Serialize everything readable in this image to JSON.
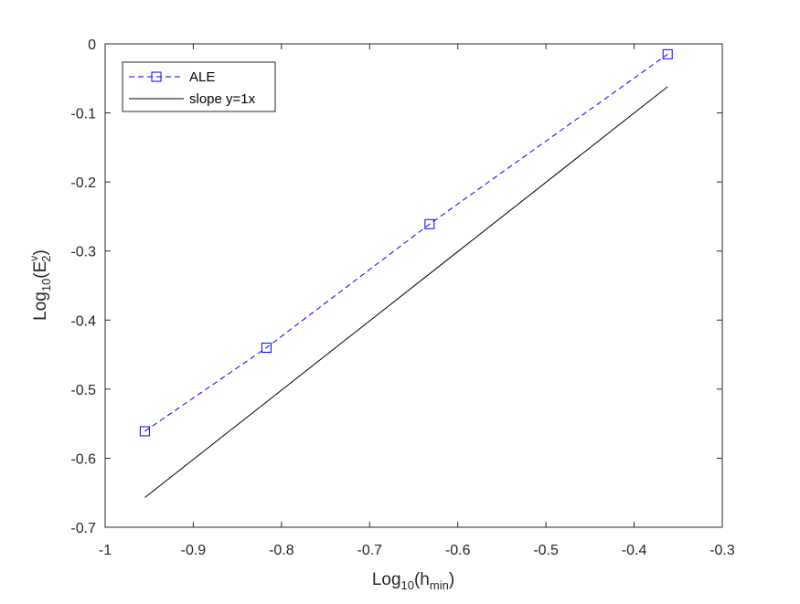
{
  "chart_data": {
    "type": "line",
    "title": "",
    "xlabel": {
      "base": "Log",
      "sub1": "10",
      "paren_open": "(h",
      "sub2": "min",
      "paren_close": ")"
    },
    "ylabel": {
      "base": "Log",
      "sub1": "10",
      "paren_open": "(E",
      "sup": "v",
      "sub2": "2",
      "paren_close": ")"
    },
    "xlim": [
      -1,
      -0.3
    ],
    "ylim": [
      -0.7,
      0
    ],
    "xticks": [
      -1,
      -0.9,
      -0.8,
      -0.7,
      -0.6,
      -0.5,
      -0.4,
      -0.3
    ],
    "xtick_labels": [
      "-1",
      "-0.9",
      "-0.8",
      "-0.7",
      "-0.6",
      "-0.5",
      "-0.4",
      "-0.3"
    ],
    "yticks": [
      -0.7,
      -0.6,
      -0.5,
      -0.4,
      -0.3,
      -0.2,
      -0.1,
      0
    ],
    "ytick_labels": [
      "-0.7",
      "-0.6",
      "-0.5",
      "-0.4",
      "-0.3",
      "-0.2",
      "-0.1",
      "0"
    ],
    "grid": false,
    "legend_position": "top-left",
    "series": [
      {
        "name": "ALE",
        "color": "#0000ff",
        "line_style": "dashed",
        "marker": "square",
        "x": [
          -0.955,
          -0.817,
          -0.632,
          -0.362
        ],
        "y": [
          -0.561,
          -0.44,
          -0.261,
          -0.015
        ]
      },
      {
        "name": "slope y=1x",
        "color": "#000000",
        "line_style": "solid",
        "marker": "none",
        "x": [
          -0.955,
          -0.362
        ],
        "y": [
          -0.657,
          -0.062
        ]
      }
    ]
  }
}
